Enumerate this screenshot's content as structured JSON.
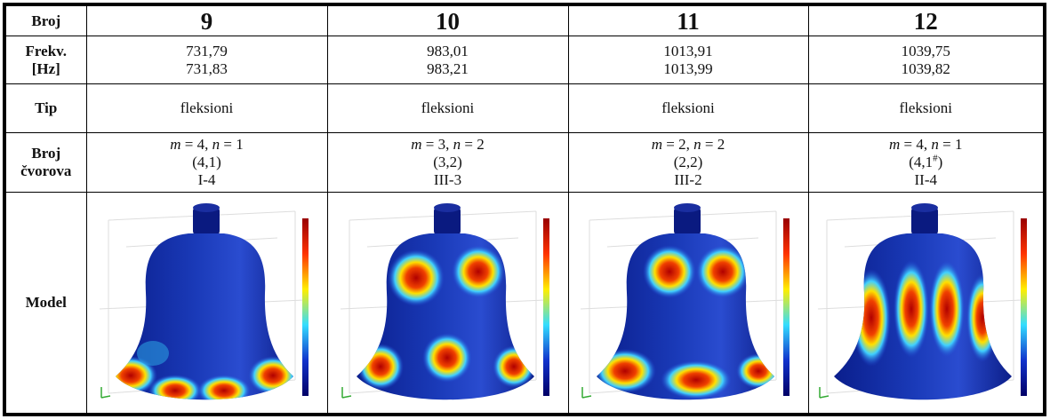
{
  "table": {
    "header": [
      "Broj",
      "9",
      "10",
      "11",
      "12"
    ],
    "freq": {
      "label": [
        "Frekv.",
        "[Hz]"
      ],
      "cells": [
        [
          "731,79",
          "731,83"
        ],
        [
          "983,01",
          "983,21"
        ],
        [
          "1013,91",
          "1013,99"
        ],
        [
          "1039,75",
          "1039,82"
        ]
      ]
    },
    "tip": {
      "label": "Tip",
      "cells": [
        "fleksioni",
        "fleksioni",
        "fleksioni",
        "fleksioni"
      ]
    },
    "modes": {
      "label": [
        "Broj",
        "čvorova"
      ],
      "cells": [
        {
          "line1": [
            "m",
            "= 4,",
            "n",
            "= 1"
          ],
          "line2": [
            "(4,1)"
          ],
          "line3": "I-4"
        },
        {
          "line1": [
            "m",
            "= 3,",
            "n",
            "= 2"
          ],
          "line2": [
            "(3,2)"
          ],
          "line3": "III-3"
        },
        {
          "line1": [
            "m",
            "= 2,",
            "n",
            "= 2"
          ],
          "line2": [
            "(2,2)"
          ],
          "line3": "III-2"
        },
        {
          "line1": [
            "m",
            "= 4,",
            "n",
            "= 1"
          ],
          "line2": [
            "(4,1",
            "#",
            ")"
          ],
          "line3": "II-4"
        }
      ]
    },
    "model": {
      "label": "Model"
    }
  }
}
